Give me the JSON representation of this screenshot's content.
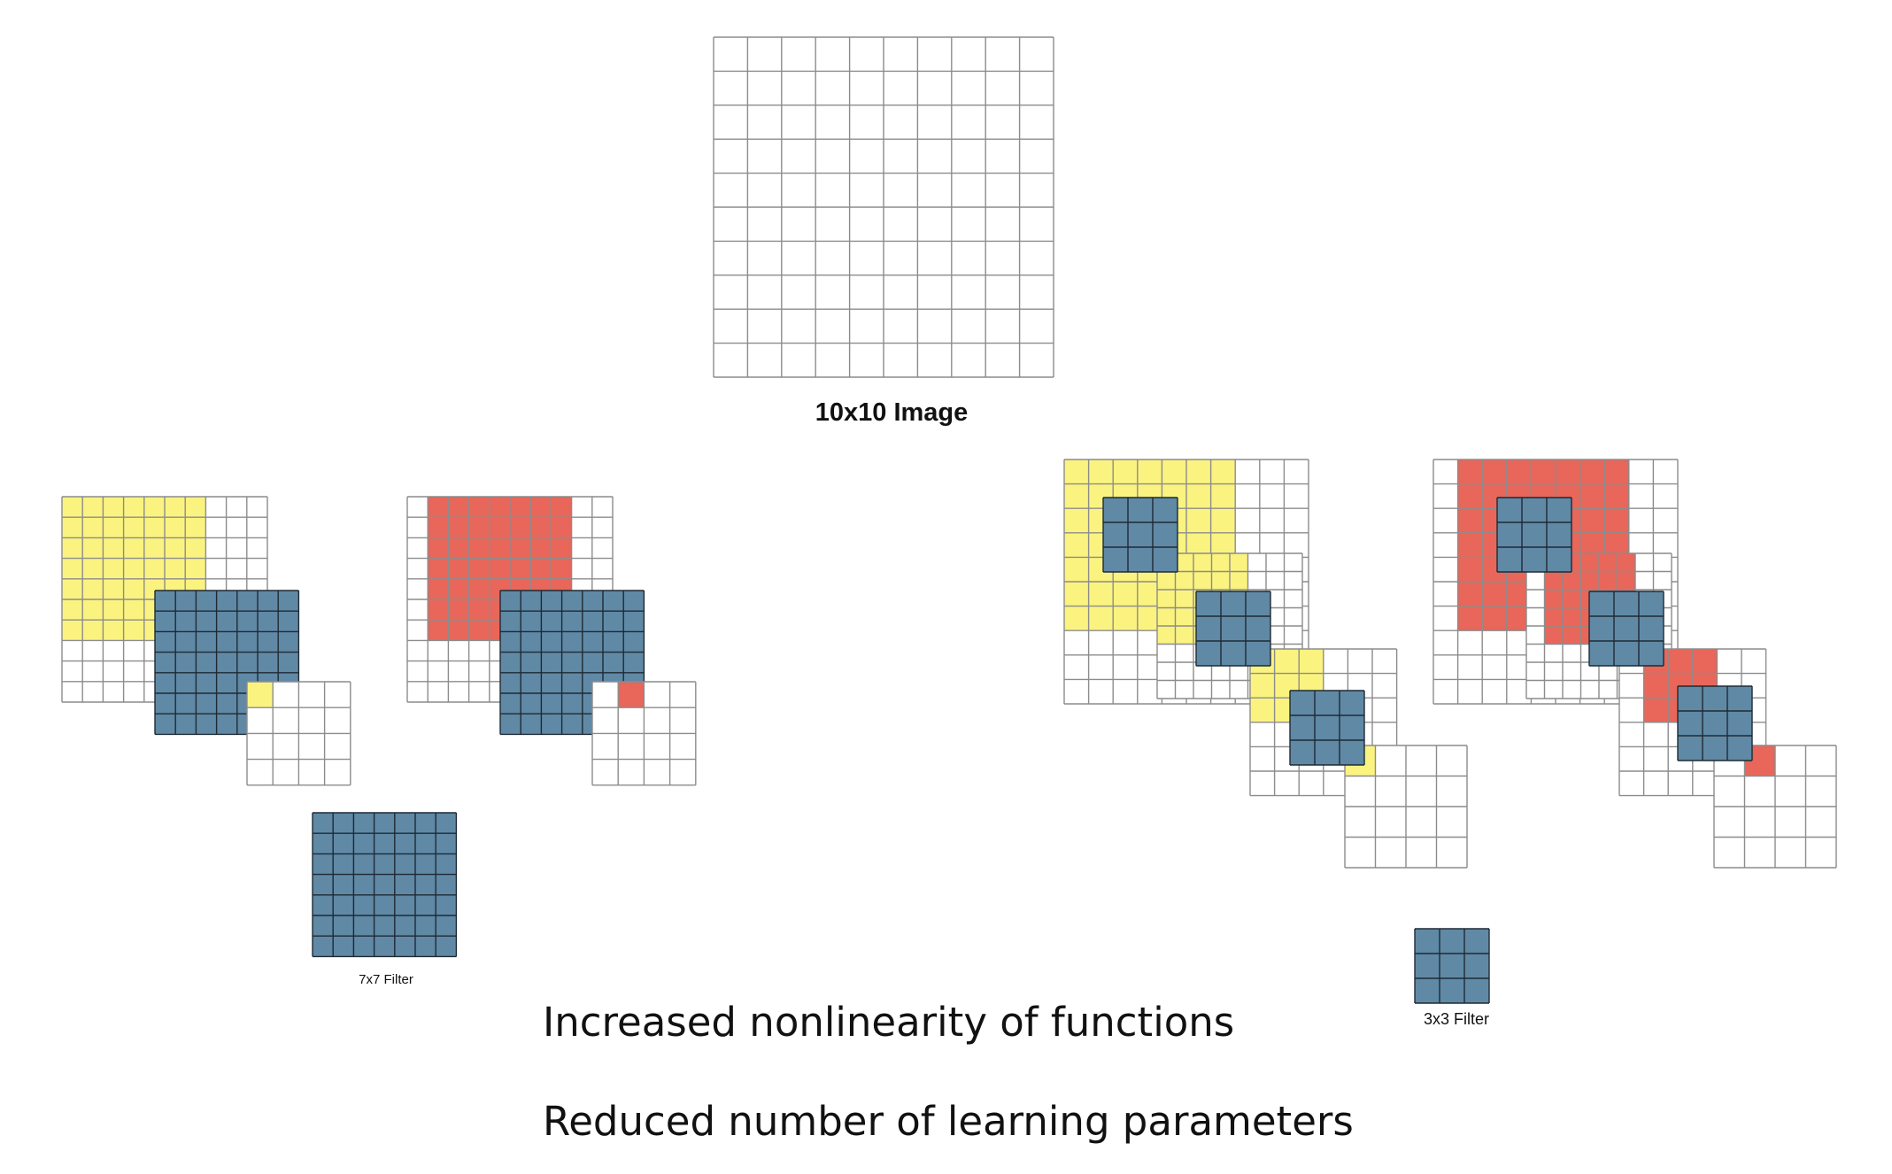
{
  "colors": {
    "yellow": "#fbf380",
    "red": "#e8665a",
    "blue": "#6089a6",
    "grid_line": "#8c8c8c",
    "filter_line": "#1e2a33"
  },
  "image_label": "10x10 Image",
  "filter7_label": "7x7 Filter",
  "filter3_label": "3x3 Filter",
  "points": [
    "Increased nonlinearity of functions",
    "Reduced number of learning parameters"
  ]
}
